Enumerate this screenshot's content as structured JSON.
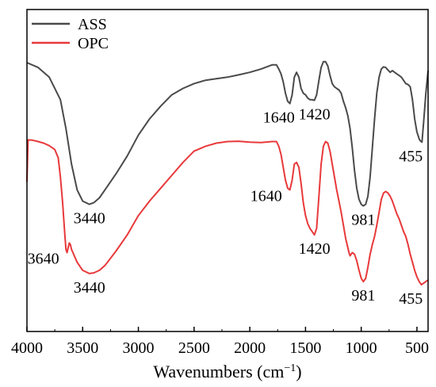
{
  "chart_data": {
    "type": "line",
    "title": "",
    "xlabel": "Wavenumbers (cm",
    "xlabel_unit_superscript": "−1",
    "xlabel_close": ")",
    "ylabel": "",
    "xlim": [
      4000,
      400
    ],
    "x_reversed": true,
    "x_ticks": [
      4000,
      3500,
      3000,
      2500,
      2000,
      1500,
      1000,
      500
    ],
    "y_ticks_shown": false,
    "grid": false,
    "legend_position": "top-left",
    "series": [
      {
        "name": "ASS",
        "color": "#4a4a4a",
        "points": [
          [
            4000,
            0.835
          ],
          [
            3900,
            0.82
          ],
          [
            3800,
            0.79
          ],
          [
            3700,
            0.72
          ],
          [
            3650,
            0.63
          ],
          [
            3600,
            0.52
          ],
          [
            3550,
            0.44
          ],
          [
            3500,
            0.405
          ],
          [
            3440,
            0.395
          ],
          [
            3400,
            0.4
          ],
          [
            3350,
            0.415
          ],
          [
            3300,
            0.44
          ],
          [
            3200,
            0.49
          ],
          [
            3100,
            0.545
          ],
          [
            3000,
            0.61
          ],
          [
            2900,
            0.66
          ],
          [
            2800,
            0.7
          ],
          [
            2700,
            0.735
          ],
          [
            2600,
            0.755
          ],
          [
            2500,
            0.77
          ],
          [
            2400,
            0.78
          ],
          [
            2300,
            0.785
          ],
          [
            2200,
            0.79
          ],
          [
            2100,
            0.797
          ],
          [
            2000,
            0.805
          ],
          [
            1900,
            0.815
          ],
          [
            1800,
            0.828
          ],
          [
            1760,
            0.828
          ],
          [
            1740,
            0.815
          ],
          [
            1720,
            0.8
          ],
          [
            1700,
            0.775
          ],
          [
            1680,
            0.74
          ],
          [
            1660,
            0.715
          ],
          [
            1640,
            0.708
          ],
          [
            1620,
            0.735
          ],
          [
            1600,
            0.79
          ],
          [
            1580,
            0.805
          ],
          [
            1560,
            0.79
          ],
          [
            1540,
            0.755
          ],
          [
            1520,
            0.74
          ],
          [
            1500,
            0.735
          ],
          [
            1480,
            0.725
          ],
          [
            1460,
            0.72
          ],
          [
            1440,
            0.72
          ],
          [
            1420,
            0.718
          ],
          [
            1400,
            0.735
          ],
          [
            1380,
            0.78
          ],
          [
            1360,
            0.82
          ],
          [
            1340,
            0.838
          ],
          [
            1320,
            0.838
          ],
          [
            1300,
            0.825
          ],
          [
            1280,
            0.795
          ],
          [
            1260,
            0.77
          ],
          [
            1240,
            0.76
          ],
          [
            1220,
            0.755
          ],
          [
            1200,
            0.75
          ],
          [
            1180,
            0.74
          ],
          [
            1160,
            0.715
          ],
          [
            1140,
            0.695
          ],
          [
            1120,
            0.67
          ],
          [
            1100,
            0.63
          ],
          [
            1080,
            0.57
          ],
          [
            1060,
            0.5
          ],
          [
            1040,
            0.445
          ],
          [
            1020,
            0.41
          ],
          [
            1000,
            0.395
          ],
          [
            981,
            0.39
          ],
          [
            960,
            0.395
          ],
          [
            940,
            0.42
          ],
          [
            920,
            0.48
          ],
          [
            900,
            0.57
          ],
          [
            880,
            0.66
          ],
          [
            860,
            0.74
          ],
          [
            840,
            0.79
          ],
          [
            820,
            0.815
          ],
          [
            800,
            0.822
          ],
          [
            780,
            0.82
          ],
          [
            760,
            0.812
          ],
          [
            740,
            0.805
          ],
          [
            720,
            0.81
          ],
          [
            700,
            0.805
          ],
          [
            680,
            0.8
          ],
          [
            660,
            0.795
          ],
          [
            640,
            0.79
          ],
          [
            620,
            0.78
          ],
          [
            600,
            0.77
          ],
          [
            580,
            0.767
          ],
          [
            560,
            0.76
          ],
          [
            540,
            0.72
          ],
          [
            520,
            0.66
          ],
          [
            500,
            0.62
          ],
          [
            480,
            0.598
          ],
          [
            470,
            0.592
          ],
          [
            460,
            0.59
          ],
          [
            455,
            0.588
          ],
          [
            440,
            0.65
          ],
          [
            420,
            0.74
          ],
          [
            400,
            0.81
          ]
        ]
      },
      {
        "name": "OPC",
        "color": "#e8393b",
        "points": [
          [
            4000,
            0.465
          ],
          [
            3990,
            0.595
          ],
          [
            3950,
            0.594
          ],
          [
            3900,
            0.59
          ],
          [
            3850,
            0.585
          ],
          [
            3800,
            0.577
          ],
          [
            3750,
            0.565
          ],
          [
            3720,
            0.54
          ],
          [
            3700,
            0.48
          ],
          [
            3680,
            0.4
          ],
          [
            3660,
            0.3
          ],
          [
            3650,
            0.255
          ],
          [
            3640,
            0.245
          ],
          [
            3630,
            0.26
          ],
          [
            3620,
            0.275
          ],
          [
            3610,
            0.27
          ],
          [
            3600,
            0.255
          ],
          [
            3550,
            0.215
          ],
          [
            3500,
            0.19
          ],
          [
            3440,
            0.18
          ],
          [
            3400,
            0.182
          ],
          [
            3350,
            0.19
          ],
          [
            3300,
            0.205
          ],
          [
            3200,
            0.25
          ],
          [
            3100,
            0.3
          ],
          [
            3000,
            0.36
          ],
          [
            2900,
            0.405
          ],
          [
            2800,
            0.445
          ],
          [
            2700,
            0.485
          ],
          [
            2600,
            0.525
          ],
          [
            2500,
            0.56
          ],
          [
            2400,
            0.575
          ],
          [
            2300,
            0.585
          ],
          [
            2200,
            0.59
          ],
          [
            2100,
            0.591
          ],
          [
            2000,
            0.588
          ],
          [
            1900,
            0.587
          ],
          [
            1800,
            0.59
          ],
          [
            1760,
            0.59
          ],
          [
            1740,
            0.575
          ],
          [
            1720,
            0.55
          ],
          [
            1700,
            0.51
          ],
          [
            1680,
            0.47
          ],
          [
            1660,
            0.445
          ],
          [
            1640,
            0.44
          ],
          [
            1620,
            0.47
          ],
          [
            1600,
            0.52
          ],
          [
            1580,
            0.525
          ],
          [
            1560,
            0.51
          ],
          [
            1540,
            0.46
          ],
          [
            1520,
            0.4
          ],
          [
            1500,
            0.36
          ],
          [
            1480,
            0.335
          ],
          [
            1460,
            0.32
          ],
          [
            1440,
            0.31
          ],
          [
            1420,
            0.3
          ],
          [
            1400,
            0.32
          ],
          [
            1380,
            0.42
          ],
          [
            1360,
            0.52
          ],
          [
            1340,
            0.575
          ],
          [
            1320,
            0.59
          ],
          [
            1300,
            0.585
          ],
          [
            1280,
            0.56
          ],
          [
            1260,
            0.52
          ],
          [
            1240,
            0.48
          ],
          [
            1220,
            0.44
          ],
          [
            1200,
            0.405
          ],
          [
            1180,
            0.37
          ],
          [
            1160,
            0.33
          ],
          [
            1140,
            0.29
          ],
          [
            1120,
            0.26
          ],
          [
            1110,
            0.245
          ],
          [
            1100,
            0.235
          ],
          [
            1090,
            0.24
          ],
          [
            1080,
            0.245
          ],
          [
            1060,
            0.24
          ],
          [
            1040,
            0.22
          ],
          [
            1020,
            0.19
          ],
          [
            1000,
            0.165
          ],
          [
            981,
            0.155
          ],
          [
            960,
            0.165
          ],
          [
            940,
            0.2
          ],
          [
            920,
            0.24
          ],
          [
            900,
            0.27
          ],
          [
            880,
            0.295
          ],
          [
            860,
            0.33
          ],
          [
            840,
            0.37
          ],
          [
            820,
            0.41
          ],
          [
            800,
            0.43
          ],
          [
            780,
            0.435
          ],
          [
            760,
            0.43
          ],
          [
            740,
            0.42
          ],
          [
            720,
            0.405
          ],
          [
            700,
            0.385
          ],
          [
            680,
            0.365
          ],
          [
            660,
            0.35
          ],
          [
            640,
            0.33
          ],
          [
            620,
            0.31
          ],
          [
            600,
            0.295
          ],
          [
            580,
            0.27
          ],
          [
            560,
            0.24
          ],
          [
            540,
            0.215
          ],
          [
            520,
            0.19
          ],
          [
            500,
            0.17
          ],
          [
            480,
            0.155
          ],
          [
            460,
            0.145
          ],
          [
            440,
            0.15
          ],
          [
            420,
            0.155
          ],
          [
            400,
            0.16
          ]
        ]
      }
    ],
    "annotations": [
      {
        "text": "3440",
        "x": 3440,
        "y": 0.395,
        "series": "ASS",
        "pos": "below"
      },
      {
        "text": "1640",
        "x": 1640,
        "y": 0.708,
        "series": "ASS",
        "pos": "below-left"
      },
      {
        "text": "1420",
        "x": 1420,
        "y": 0.718,
        "series": "ASS",
        "pos": "below"
      },
      {
        "text": "981",
        "x": 981,
        "y": 0.39,
        "series": "ASS",
        "pos": "below"
      },
      {
        "text": "455",
        "x": 455,
        "y": 0.588,
        "series": "ASS",
        "pos": "below-left"
      },
      {
        "text": "3640",
        "x": 3640,
        "y": 0.245,
        "series": "OPC",
        "pos": "left"
      },
      {
        "text": "3440",
        "x": 3440,
        "y": 0.18,
        "series": "OPC",
        "pos": "below"
      },
      {
        "text": "1640",
        "x": 1640,
        "y": 0.44,
        "series": "OPC",
        "pos": "left"
      },
      {
        "text": "1420",
        "x": 1420,
        "y": 0.3,
        "series": "OPC",
        "pos": "below"
      },
      {
        "text": "981",
        "x": 981,
        "y": 0.155,
        "series": "OPC",
        "pos": "below"
      },
      {
        "text": "455",
        "x": 455,
        "y": 0.145,
        "series": "OPC",
        "pos": "below-left"
      }
    ]
  }
}
